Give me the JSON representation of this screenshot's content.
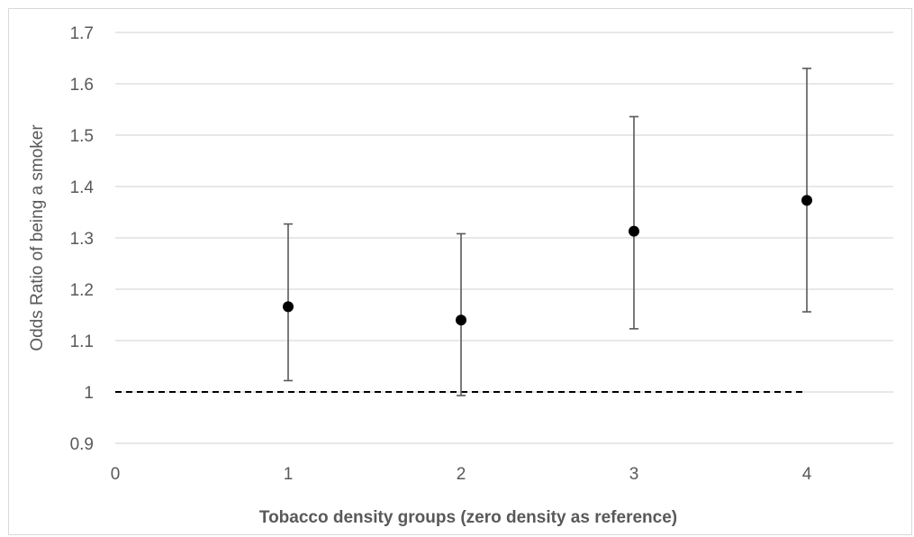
{
  "chart_data": {
    "type": "scatter",
    "title": "",
    "xlabel": "Tobacco density groups (zero density as reference)",
    "ylabel": "Odds Ratio of being a smoker",
    "xlim": [
      0,
      4.5
    ],
    "ylim": [
      0.9,
      1.7
    ],
    "x_ticks": [
      "0",
      "1",
      "2",
      "3",
      "4"
    ],
    "y_ticks": [
      "0.9",
      "1",
      "1.1",
      "1.2",
      "1.3",
      "1.4",
      "1.5",
      "1.6",
      "1.7"
    ],
    "grid": "horizontal",
    "points": [
      {
        "x": 1,
        "y": 1.166,
        "lower": 1.022,
        "upper": 1.327
      },
      {
        "x": 2,
        "y": 1.14,
        "lower": 0.993,
        "upper": 1.308
      },
      {
        "x": 3,
        "y": 1.313,
        "lower": 1.123,
        "upper": 1.536
      },
      {
        "x": 4,
        "y": 1.373,
        "lower": 1.156,
        "upper": 1.63
      }
    ],
    "reference_line": {
      "y": 1,
      "x_start": 0,
      "x_end": 4,
      "style": "dashed"
    }
  }
}
